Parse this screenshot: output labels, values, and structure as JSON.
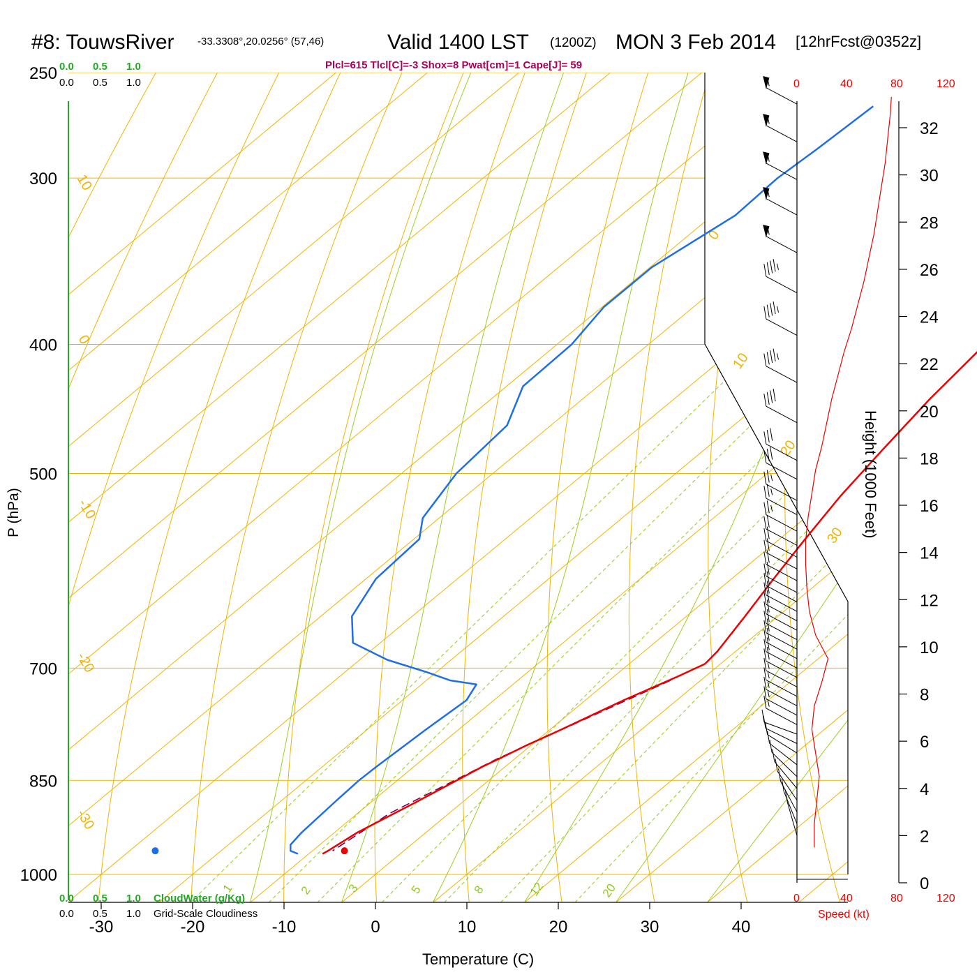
{
  "header": {
    "station": "#8: TouwsRiver",
    "coords": "-33.3308°,20.0256° (57,46)",
    "valid": "Valid 1400 LST",
    "utc": "(1200Z)",
    "date": "MON 3 Feb 2014",
    "forecast": "[12hrFcst@0352z]",
    "indices": "Plcl=615 Tlcl[C]=-3 Shox=8 Pwat[cm]=1 Cape[J]= 59"
  },
  "colors": {
    "isotherm": "#f0b400",
    "mixing_ratio": "#8fcc1a",
    "moist_adiabat": "#9ad020",
    "temperature": "#ee0000",
    "dewpoint": "#1e6fe6",
    "parcel": "#770055",
    "cloud_water": "#22aa22",
    "indices": "#aa0055",
    "speed": "#ee0000",
    "wind_barb": "#000000"
  },
  "legend_top": {
    "cloudwater_ticks": [
      "0.0",
      "0.5",
      "1.0"
    ],
    "cloudiness_ticks": [
      "0.0",
      "0.5",
      "1.0"
    ]
  },
  "legend_bottom": {
    "cloudwater_ticks": [
      "0.0",
      "0.5",
      "1.0"
    ],
    "cloudwater_label": "CloudWater (g/Kg)",
    "cloudiness_ticks": [
      "0.0",
      "0.5",
      "1.0"
    ],
    "cloudiness_label": "Grid-Scale Cloudiness"
  },
  "speed_axis": {
    "ticks": [
      "0",
      "40",
      "80",
      "120"
    ],
    "label": "Speed (kt)"
  },
  "height_axis": {
    "ticks": [
      "0",
      "2",
      "4",
      "6",
      "8",
      "10",
      "12",
      "14",
      "16",
      "18",
      "20",
      "22",
      "24",
      "26",
      "28",
      "30",
      "32"
    ],
    "label": "Height (1000 Feet)"
  },
  "chart_data": {
    "type": "skew-t",
    "xlabel": "Temperature (C)",
    "ylabel": "P (hPa)",
    "xlim": [
      -34,
      48
    ],
    "ylim_hpa": [
      1000,
      250
    ],
    "x_ticks": [
      "-30",
      "-20",
      "-10",
      "0",
      "10",
      "20",
      "30",
      "40"
    ],
    "y_ticks": [
      "250",
      "300",
      "400",
      "500",
      "700",
      "850",
      "1000"
    ],
    "theta_labels": [
      "10",
      "0",
      "-10",
      "-20",
      "-30",
      "0",
      "10",
      "20",
      "30"
    ],
    "mixing_ratio_labels": [
      "1",
      "2",
      "3",
      "5",
      "8",
      "12",
      "20"
    ],
    "temperature_profile": [
      [
        -8.9,
        265
      ],
      [
        -6.5,
        290
      ],
      [
        -5.0,
        320
      ],
      [
        -4.2,
        350
      ],
      [
        -3.2,
        400
      ],
      [
        -2.0,
        440
      ],
      [
        -0.5,
        480
      ],
      [
        1.0,
        520
      ],
      [
        2.8,
        560
      ],
      [
        4.6,
        600
      ],
      [
        6.4,
        640
      ],
      [
        8.0,
        680
      ],
      [
        8.3,
        695
      ],
      [
        7.0,
        710
      ],
      [
        4.2,
        740
      ],
      [
        1.1,
        780
      ],
      [
        -0.5,
        800
      ],
      [
        -1.8,
        820
      ],
      [
        -2.5,
        830
      ],
      [
        -3.5,
        850
      ],
      [
        -5.2,
        885
      ],
      [
        -7.5,
        930
      ],
      [
        -8.3,
        960
      ],
      [
        -8.5,
        965
      ]
    ],
    "dewpoint_profile": [
      [
        -46.8,
        265
      ],
      [
        -47.3,
        285
      ],
      [
        -47.8,
        300
      ],
      [
        -47.5,
        320
      ],
      [
        -49.8,
        350
      ],
      [
        -49.8,
        375
      ],
      [
        -48.4,
        400
      ],
      [
        -48.2,
        430
      ],
      [
        -44.8,
        460
      ],
      [
        -44.0,
        500
      ],
      [
        -41.8,
        540
      ],
      [
        -39.4,
        560
      ],
      [
        -38.9,
        600
      ],
      [
        -36.6,
        640
      ],
      [
        -33.0,
        670
      ],
      [
        -27.0,
        690
      ],
      [
        -21.0,
        705
      ],
      [
        -17.4,
        715
      ],
      [
        -14.0,
        720
      ],
      [
        -13.0,
        740
      ],
      [
        -13.6,
        780
      ],
      [
        -13.8,
        800
      ],
      [
        -14.1,
        830
      ],
      [
        -14.2,
        850
      ],
      [
        -14.0,
        880
      ],
      [
        -13.6,
        930
      ],
      [
        -13.2,
        950
      ],
      [
        -12.4,
        960
      ],
      [
        -11.2,
        965
      ]
    ],
    "parcel_profile": [
      [
        6.7,
        715
      ],
      [
        2.0,
        770
      ],
      [
        -2.0,
        820
      ],
      [
        -6.5,
        900
      ],
      [
        -7.8,
        960
      ]
    ],
    "surface_temperature_marker": [
      -6.5,
      960
    ],
    "surface_dewpoint_marker": [
      -27.2,
      960
    ],
    "wind_speed_profile_kt": [
      [
        14,
        1.5
      ],
      [
        14,
        2.5
      ],
      [
        16,
        3.5
      ],
      [
        18,
        4.5
      ],
      [
        15,
        5.5
      ],
      [
        12,
        6.5
      ],
      [
        14,
        7.5
      ],
      [
        20,
        8.5
      ],
      [
        25,
        9.5
      ],
      [
        15,
        10.5
      ],
      [
        10,
        11.5
      ],
      [
        8,
        12.5
      ],
      [
        7,
        13.5
      ],
      [
        7,
        14.5
      ],
      [
        9,
        15.5
      ],
      [
        12,
        16.5
      ],
      [
        15,
        17.5
      ],
      [
        20,
        18.5
      ],
      [
        24,
        19.5
      ],
      [
        28,
        20.5
      ],
      [
        33,
        21.5
      ],
      [
        38,
        22.5
      ],
      [
        44,
        23.5
      ],
      [
        49,
        24.5
      ],
      [
        54,
        25.5
      ],
      [
        58,
        26.5
      ],
      [
        62,
        27.5
      ],
      [
        65,
        28.5
      ],
      [
        68,
        29.5
      ],
      [
        71,
        30.5
      ],
      [
        73,
        31.5
      ],
      [
        75,
        32.5
      ],
      [
        76,
        33.3
      ]
    ],
    "barb_heights_kft": [
      33,
      31.4,
      29.8,
      28.3,
      26.7,
      25,
      23.2,
      21.2,
      19.5,
      17.9,
      17.1,
      16.2,
      15.6,
      14.9,
      14.3,
      13.8,
      13.3,
      12.8,
      12.3,
      11.9,
      11.5,
      11.1,
      10.7,
      10.3,
      9.9,
      9.5,
      9.1,
      8.7,
      8.3,
      7.9,
      7.5,
      7.1,
      6.7,
      6.3,
      5.9,
      5.5,
      5.0,
      4.5,
      4.0,
      3.5,
      3.0,
      2.5,
      2.0
    ],
    "barb_speeds_kt": [
      55,
      55,
      55,
      55,
      55,
      45,
      45,
      45,
      40,
      30,
      30,
      25,
      25,
      25,
      20,
      20,
      20,
      20,
      20,
      20,
      20,
      20,
      20,
      20,
      20,
      20,
      20,
      20,
      15,
      15,
      15,
      15,
      15,
      10,
      10,
      10,
      10,
      10,
      10,
      10,
      10,
      10,
      10
    ]
  }
}
